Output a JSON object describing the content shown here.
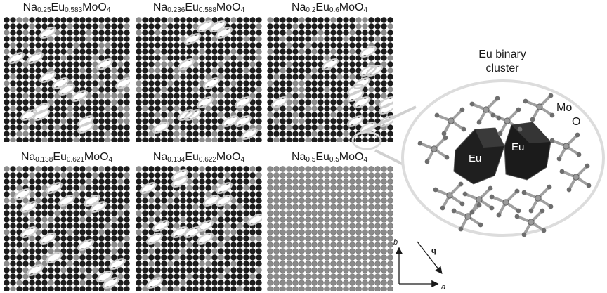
{
  "panels": [
    {
      "formula": {
        "na": "Na",
        "na_sub": "0.25",
        "eu": "Eu",
        "eu_sub": "0.583",
        "rest": "MoO",
        "o_sub": "4"
      },
      "type": "ordered",
      "seed": 11
    },
    {
      "formula": {
        "na": "Na",
        "na_sub": "0.236",
        "eu": "Eu",
        "eu_sub": "0.588",
        "rest": "MoO",
        "o_sub": "4"
      },
      "type": "ordered",
      "seed": 23
    },
    {
      "formula": {
        "na": "Na",
        "na_sub": "0.2",
        "eu": "Eu",
        "eu_sub": "0.6",
        "rest": "MoO",
        "o_sub": "4"
      },
      "type": "ordered",
      "seed": 37
    },
    {
      "formula": {
        "na": "Na",
        "na_sub": "0.138",
        "eu": "Eu",
        "eu_sub": "0.621",
        "rest": "MoO",
        "o_sub": "4"
      },
      "type": "ordered",
      "seed": 41
    },
    {
      "formula": {
        "na": "Na",
        "na_sub": "0.134",
        "eu": "Eu",
        "eu_sub": "0.622",
        "rest": "MoO",
        "o_sub": "4"
      },
      "type": "ordered",
      "seed": 53
    },
    {
      "formula": {
        "na": "Na",
        "na_sub": "0.5",
        "eu": "Eu",
        "eu_sub": "0.5",
        "rest": "MoO",
        "o_sub": "4"
      },
      "type": "uniform",
      "seed": 0
    }
  ],
  "cluster": {
    "title_line1": "Eu binary",
    "title_line2": "cluster",
    "eu_label_1": "Eu",
    "eu_label_2": "Eu",
    "mo_label": "Mo",
    "o_label": "O"
  },
  "axes": {
    "b": "b",
    "a": "a",
    "q": "q"
  },
  "colors": {
    "eu_atom": "#1c1c1c",
    "na_atom": "#8a8a8a",
    "lens_line": "#d0d0d0",
    "cluster_ring": "#e6e6e6"
  }
}
